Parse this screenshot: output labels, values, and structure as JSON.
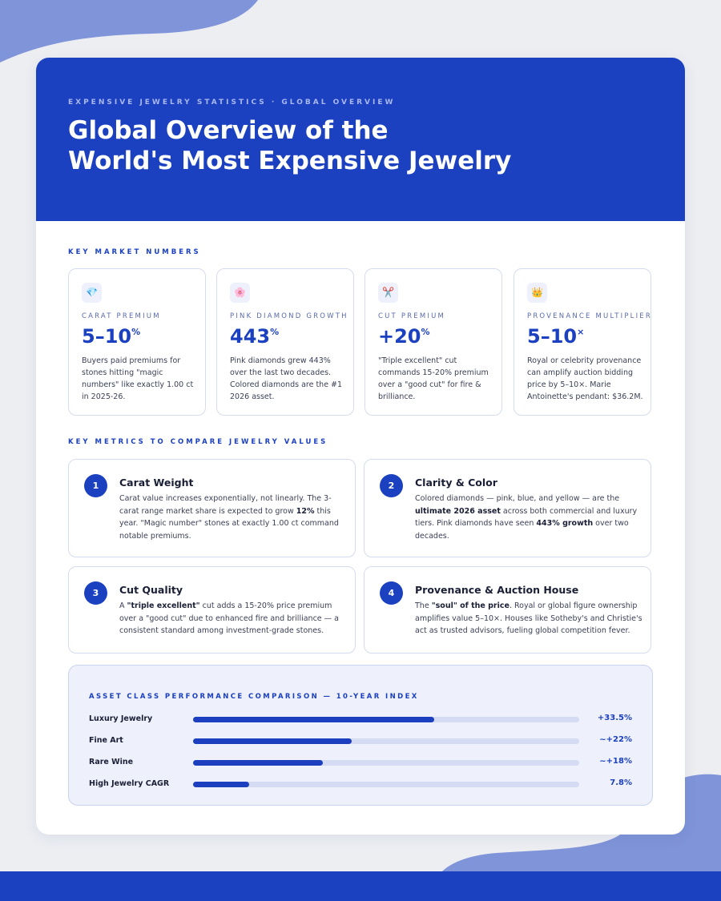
{
  "header": {
    "eyebrow": "EXPENSIVE JEWELRY STATISTICS · GLOBAL OVERVIEW",
    "title_lines": [
      "Global Overview of the",
      "World's Most Expensive Jewelry"
    ]
  },
  "key_numbers": {
    "heading": "KEY MARKET NUMBERS",
    "cards": [
      {
        "icon": "💎",
        "label": "CARAT PREMIUM",
        "value": "5–10",
        "unit": "%",
        "description": "Buyers paid premiums for stones hitting \"magic numbers\" like exactly 1.00 ct in 2025-26."
      },
      {
        "icon": "🌸",
        "label": "PINK DIAMOND GROWTH",
        "value": "443",
        "unit": "%",
        "description": "Pink diamonds grew 443% over the last two decades. Colored diamonds are the #1 2026 asset."
      },
      {
        "icon": "✂️",
        "label": "CUT PREMIUM",
        "value": "+20",
        "unit": "%",
        "description": "\"Triple excellent\" cut commands 15-20% premium over a \"good cut\" for fire & brilliance."
      },
      {
        "icon": "👑",
        "label": "PROVENANCE MULTIPLIER",
        "value": "5–10",
        "unit": "×",
        "description": "Royal or celebrity provenance can amplify auction bidding price by 5–10×. Marie Antoinette's pendant: $36.2M."
      }
    ]
  },
  "metrics": {
    "heading": "KEY METRICS TO COMPARE JEWELRY VALUES",
    "items": [
      {
        "number": "1",
        "title": "Carat Weight",
        "description": [
          {
            "text": "Carat value increases exponentially, not linearly. The 3-carat range market share is expected to grow ",
            "bold": false
          },
          {
            "text": "12%",
            "bold": true
          },
          {
            "text": " this year. \"Magic number\" stones at exactly 1.00 ct command notable premiums.",
            "bold": false
          }
        ]
      },
      {
        "number": "2",
        "title": "Clarity & Color",
        "description": [
          {
            "text": "Colored diamonds — pink, blue, and yellow — are the ",
            "bold": false
          },
          {
            "text": "ultimate 2026 asset",
            "bold": true
          },
          {
            "text": " across both commercial and luxury tiers. Pink diamonds have seen ",
            "bold": false
          },
          {
            "text": "443% growth",
            "bold": true
          },
          {
            "text": " over two decades.",
            "bold": false
          }
        ]
      },
      {
        "number": "3",
        "title": "Cut Quality",
        "description": [
          {
            "text": "A ",
            "bold": false
          },
          {
            "text": "\"triple excellent\"",
            "bold": true
          },
          {
            "text": " cut adds a 15-20% price premium over a \"good cut\" due to enhanced fire and brilliance — a consistent standard among investment-grade stones.",
            "bold": false
          }
        ]
      },
      {
        "number": "4",
        "title": "Provenance & Auction House",
        "description": [
          {
            "text": "The ",
            "bold": false
          },
          {
            "text": "\"soul\" of the price",
            "bold": true
          },
          {
            "text": ". Royal or global figure ownership amplifies value 5–10×. Houses like Sotheby's and Christie's act as trusted advisors, fueling global competition fever.",
            "bold": false
          }
        ]
      }
    ]
  },
  "chart_data": {
    "type": "bar",
    "orientation": "horizontal",
    "title": "ASSET CLASS PERFORMANCE COMPARISON — 10-YEAR INDEX",
    "categories": [
      "Luxury Jewelry",
      "Fine Art",
      "Rare Wine",
      "High Jewelry CAGR"
    ],
    "values": [
      33.5,
      22,
      18,
      7.8
    ],
    "value_labels": [
      "+33.5%",
      "~+22%",
      "~+18%",
      "7.8%"
    ],
    "xlim": [
      0,
      53.6
    ],
    "color": "#1b3fbe",
    "track_color": "#d4dbf3"
  }
}
